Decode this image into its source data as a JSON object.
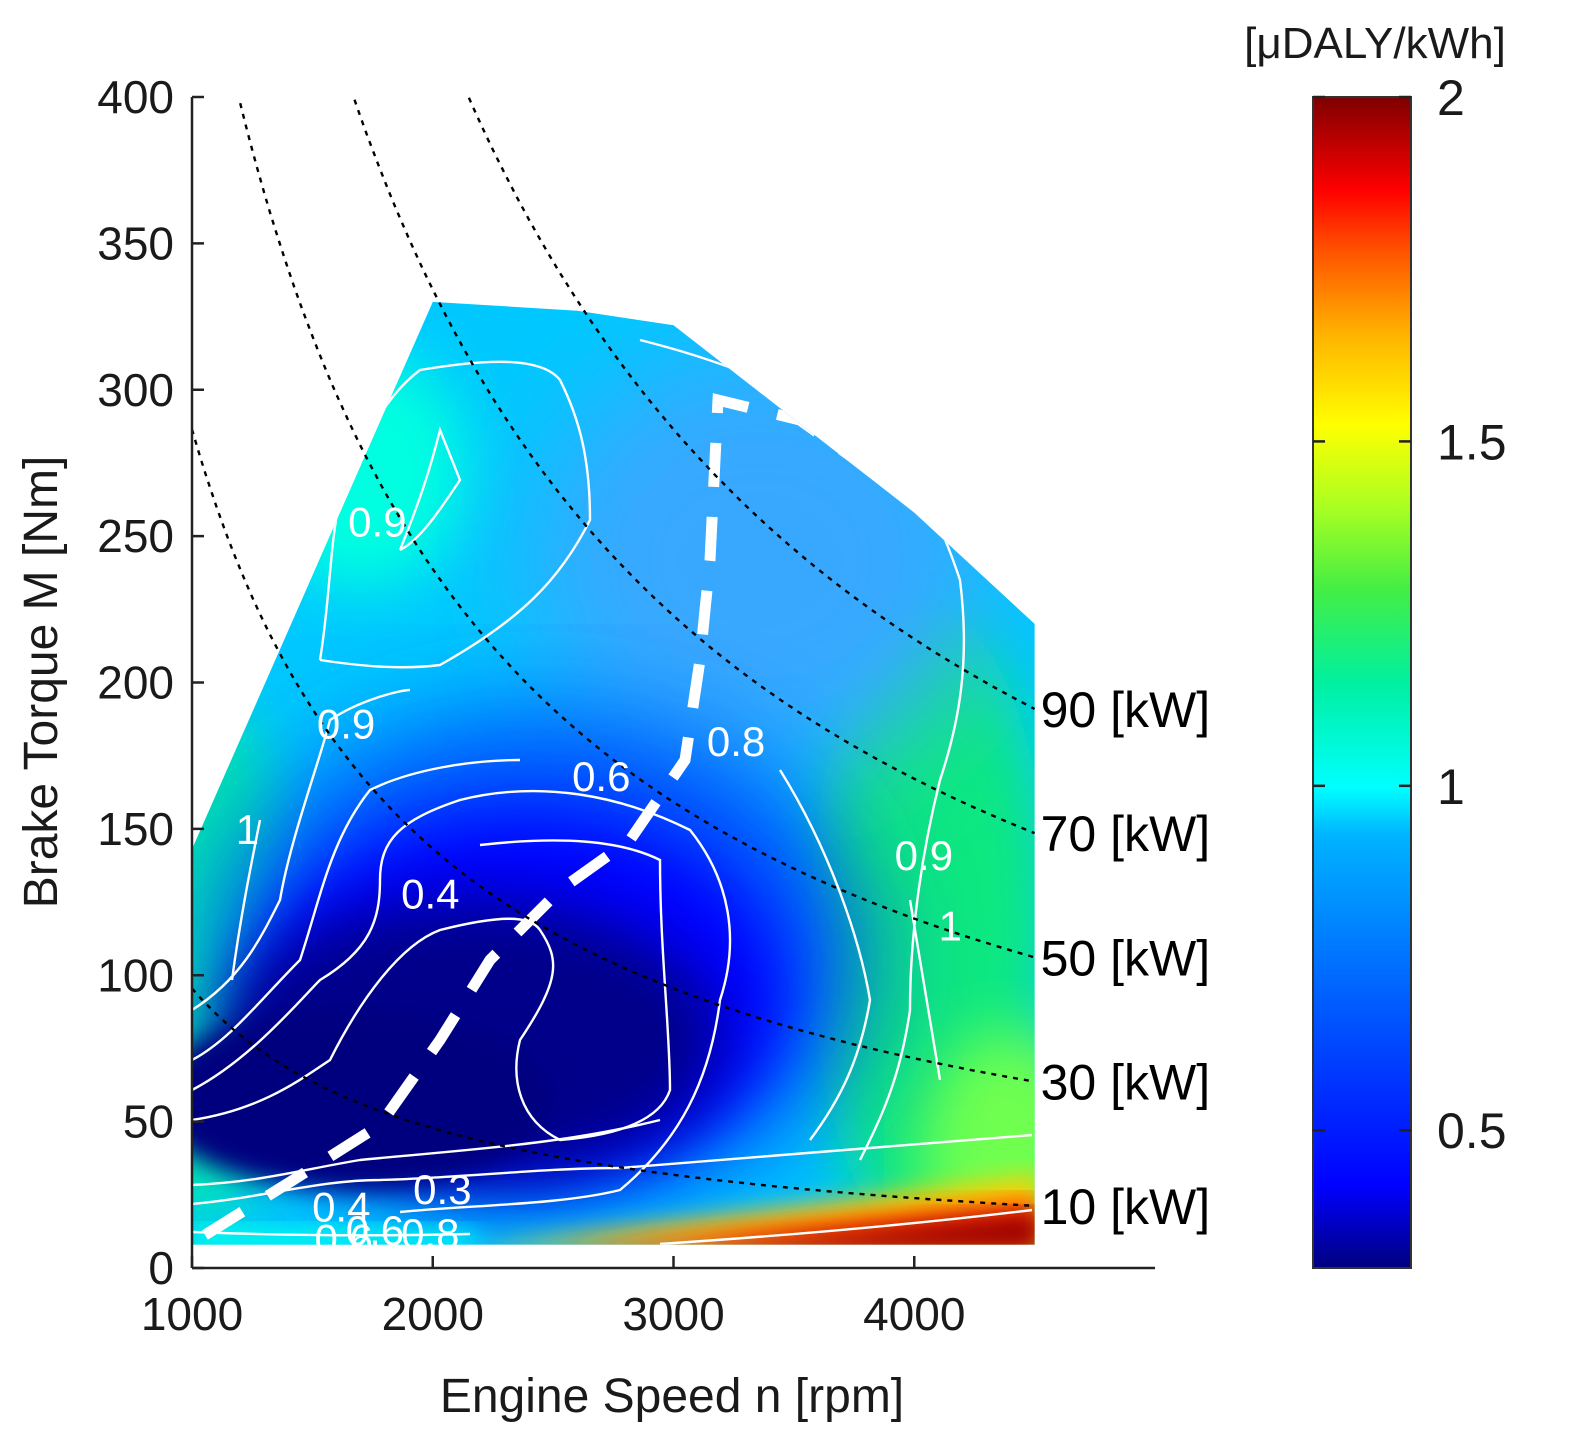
{
  "chart_data": {
    "type": "heatmap",
    "x_axis": {
      "label": "Engine Speed n [rpm]",
      "range": [
        1000,
        5000
      ],
      "ticks": [
        1000,
        2000,
        3000,
        4000
      ],
      "tick_labels": [
        "1000",
        "2000",
        "3000",
        "4000"
      ]
    },
    "y_axis": {
      "label": "Brake Torque M [Nm]",
      "range": [
        0,
        400
      ],
      "ticks": [
        0,
        50,
        100,
        150,
        200,
        250,
        300,
        350,
        400
      ],
      "tick_labels": [
        "0",
        "50",
        "100",
        "150",
        "200",
        "250",
        "300",
        "350",
        "400"
      ]
    },
    "colorbar": {
      "unit": "[μDALY/kWh]",
      "range": [
        0.3,
        2
      ],
      "ticks": [
        0.5,
        1,
        1.5,
        2
      ],
      "tick_labels": [
        "0.5",
        "1",
        "1.5",
        "2"
      ],
      "colormap": [
        "#00007f",
        "#0000ff",
        "#007fff",
        "#00ffff",
        "#7fff7f",
        "#ffff00",
        "#ff7f00",
        "#ff0000",
        "#7f0000"
      ]
    },
    "operating_envelope": [
      [
        1000,
        143
      ],
      [
        2000,
        330
      ],
      [
        2600,
        327
      ],
      [
        3000,
        322
      ],
      [
        3500,
        290
      ],
      [
        4000,
        258
      ],
      [
        4500,
        220
      ],
      [
        4500,
        8
      ],
      [
        1000,
        8
      ]
    ],
    "power_lines": [
      {
        "label": "10 [kW]",
        "kw": 10
      },
      {
        "label": "30 [kW]",
        "kw": 30
      },
      {
        "label": "50 [kW]",
        "kw": 50
      },
      {
        "label": "70 [kW]",
        "kw": 70
      },
      {
        "label": "90 [kW]",
        "kw": 90
      }
    ],
    "contour_labels": [
      {
        "text": "1",
        "x": 1180,
        "y": 270
      },
      {
        "text": "0.9",
        "x": 1770,
        "y": 255
      },
      {
        "text": "0.9",
        "x": 1640,
        "y": 186
      },
      {
        "text": "1",
        "x": 1230,
        "y": 150
      },
      {
        "text": "0.6",
        "x": 2700,
        "y": 168
      },
      {
        "text": "0.8",
        "x": 3260,
        "y": 180
      },
      {
        "text": "0.4",
        "x": 1990,
        "y": 128
      },
      {
        "text": "0.9",
        "x": 4040,
        "y": 141
      },
      {
        "text": "1",
        "x": 4150,
        "y": 117
      },
      {
        "text": "0.3",
        "x": 2040,
        "y": 27
      },
      {
        "text": "0.4",
        "x": 1620,
        "y": 21
      },
      {
        "text": "0.6",
        "x": 1760,
        "y": 13
      },
      {
        "text": "0.6",
        "x": 1630,
        "y": 10
      },
      {
        "text": "0.8",
        "x": 1990,
        "y": 12
      }
    ]
  }
}
